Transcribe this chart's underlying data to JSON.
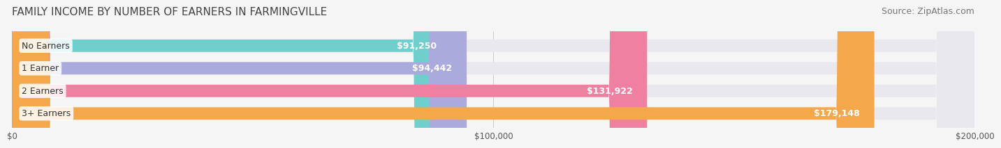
{
  "title": "FAMILY INCOME BY NUMBER OF EARNERS IN FARMINGVILLE",
  "source": "Source: ZipAtlas.com",
  "categories": [
    "No Earners",
    "1 Earner",
    "2 Earners",
    "3+ Earners"
  ],
  "values": [
    91250,
    94442,
    131922,
    179148
  ],
  "labels": [
    "$91,250",
    "$94,442",
    "$131,922",
    "$179,148"
  ],
  "bar_colors": [
    "#6ECFCC",
    "#AAAADD",
    "#F080A0",
    "#F5A84B"
  ],
  "bar_bg_color": "#E8E8EE",
  "xlim": [
    0,
    200000
  ],
  "xticks": [
    0,
    100000,
    200000
  ],
  "xtick_labels": [
    "$0",
    "$100,000",
    "$200,000"
  ],
  "background_color": "#F5F5F5",
  "title_fontsize": 11,
  "source_fontsize": 9,
  "label_fontsize": 9,
  "bar_height": 0.55,
  "label_left_color": "#555555",
  "label_inside_color": "#FFFFFF"
}
